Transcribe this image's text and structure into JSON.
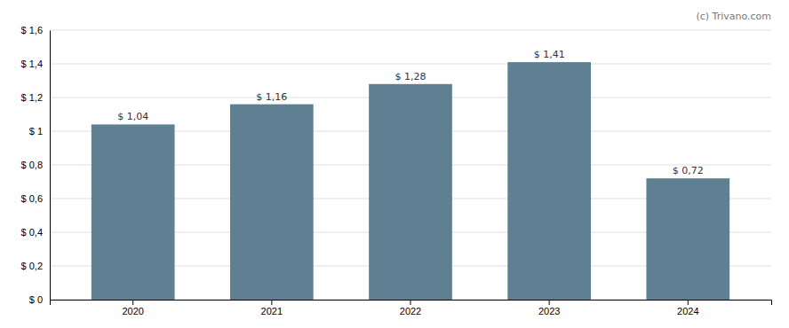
{
  "chart_data": {
    "type": "bar",
    "categories": [
      "2020",
      "2021",
      "2022",
      "2023",
      "2024"
    ],
    "values": [
      1.04,
      1.16,
      1.28,
      1.41,
      0.72
    ],
    "value_labels": [
      "$ 1,04",
      "$ 1,16",
      "$ 1,28",
      "$ 1,41",
      "$ 0,72"
    ],
    "data_labels": true,
    "color": "#5f7f93",
    "ylim": [
      0,
      1.6
    ],
    "yticks": [
      {
        "value": 0,
        "label": "$ 0"
      },
      {
        "value": 0.2,
        "label": "$ 0,2"
      },
      {
        "value": 0.4,
        "label": "$ 0,4"
      },
      {
        "value": 0.6,
        "label": "$ 0,6"
      },
      {
        "value": 0.8,
        "label": "$ 0,8"
      },
      {
        "value": 1.0,
        "label": "$ 1"
      },
      {
        "value": 1.2,
        "label": "$ 1,2"
      },
      {
        "value": 1.4,
        "label": "$ 1,4"
      },
      {
        "value": 1.6,
        "label": "$ 1,6"
      }
    ],
    "grid": true,
    "annotations": [
      "(c) Trivano.com"
    ]
  }
}
